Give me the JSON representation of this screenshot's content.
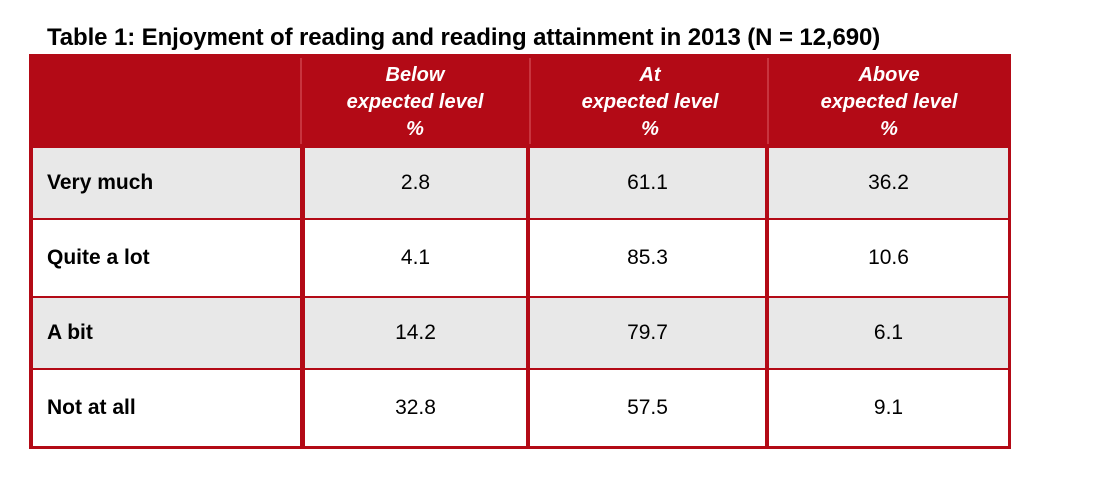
{
  "title": "Table 1: Enjoyment of reading and reading attainment in 2013 (N = 12,690)",
  "colors": {
    "frame": "#b30a16",
    "header_text": "#ffffff",
    "row_shade": "#e8e8e8"
  },
  "header": {
    "col1": [
      "Below",
      "expected level",
      "%"
    ],
    "col2": [
      "At",
      "expected level",
      "%"
    ],
    "col3": [
      "Above",
      "expected level",
      "%"
    ]
  },
  "rows": [
    {
      "label": "Very much",
      "below": "2.8",
      "at": "61.1",
      "above": "36.2"
    },
    {
      "label": "Quite a lot",
      "below": "4.1",
      "at": "85.3",
      "above": "10.6"
    },
    {
      "label": "A bit",
      "below": "14.2",
      "at": "79.7",
      "above": "6.1"
    },
    {
      "label": "Not at all",
      "below": "32.8",
      "at": "57.5",
      "above": "9.1"
    }
  ],
  "chart_data": {
    "type": "table",
    "title": "Table 1: Enjoyment of reading and reading attainment in 2013 (N = 12,690)",
    "columns": [
      "Below expected level %",
      "At expected level %",
      "Above expected level %"
    ],
    "categories": [
      "Very much",
      "Quite a lot",
      "A bit",
      "Not at all"
    ],
    "series": [
      {
        "name": "Below expected level %",
        "values": [
          2.8,
          4.1,
          14.2,
          32.8
        ]
      },
      {
        "name": "At expected level %",
        "values": [
          61.1,
          85.3,
          79.7,
          57.5
        ]
      },
      {
        "name": "Above expected level %",
        "values": [
          36.2,
          10.6,
          6.1,
          9.1
        ]
      }
    ]
  }
}
